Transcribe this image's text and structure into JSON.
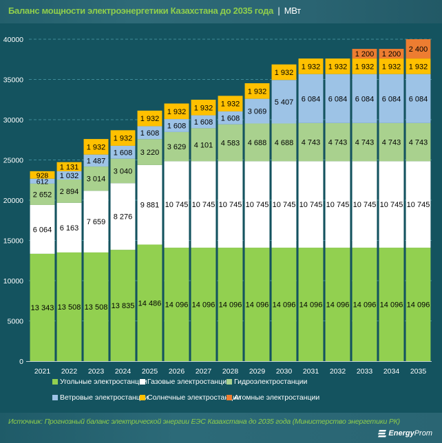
{
  "header": {
    "title": "Баланс мощности электроэнергетики Казахстана до 2035 года",
    "separator": "|",
    "unit": "МВт"
  },
  "footer": {
    "source": "Источник: Прогнозный баланс электрической энергии ЕЭС Казахстана до 2035 года (Министерство энергетики РК)",
    "logo_bold": "Energy",
    "logo_light": "Prom",
    "logo_icon": "energyprom-logo-icon"
  },
  "chart_data": {
    "type": "bar",
    "stacked": true,
    "title": "Баланс мощности электроэнергетики Казахстана до 2035 года",
    "unit": "МВт",
    "xlabel": "",
    "ylabel": "",
    "ylim": [
      0,
      40000
    ],
    "yticks": [
      0,
      5000,
      10000,
      15000,
      20000,
      25000,
      30000,
      35000,
      40000
    ],
    "grid": true,
    "legend_position": "bottom",
    "categories": [
      "2021",
      "2022",
      "2023",
      "2024",
      "2025",
      "2026",
      "2027",
      "2028",
      "2029",
      "2030",
      "2031",
      "2032",
      "2033",
      "2034",
      "2035"
    ],
    "series": [
      {
        "name": "Угольные электростанции",
        "color": "#92d050",
        "values": [
          13343,
          13508,
          13508,
          13835,
          14486,
          14096,
          14096,
          14096,
          14096,
          14096,
          14096,
          14096,
          14096,
          14096,
          14096
        ],
        "labels": [
          "13 343",
          "13 508",
          "13 508",
          "13 835",
          "14 486",
          "14 096",
          "14 096",
          "14 096",
          "14 096",
          "14 096",
          "14 096",
          "14 096",
          "14 096",
          "14 096",
          "14 096"
        ]
      },
      {
        "name": "Газовые электростанции",
        "color": "#ffffff",
        "values": [
          6064,
          6163,
          7659,
          8276,
          9881,
          10745,
          10745,
          10745,
          10745,
          10745,
          10745,
          10745,
          10745,
          10745,
          10745
        ],
        "labels": [
          "6 064",
          "6 163",
          "7 659",
          "8 276",
          "9 881",
          "10 745",
          "10 745",
          "10 745",
          "10 745",
          "10 745",
          "10 745",
          "10 745",
          "10 745",
          "10 745",
          "10 745"
        ]
      },
      {
        "name": "Гидроэлектростанции",
        "color": "#a9d18e",
        "values": [
          2652,
          2894,
          3014,
          3040,
          3220,
          3629,
          4101,
          4583,
          4688,
          4688,
          4743,
          4743,
          4743,
          4743,
          4743
        ],
        "labels": [
          "2 652",
          "2 894",
          "3 014",
          "3 040",
          "3 220",
          "3 629",
          "4 101",
          "4 583",
          "4 688",
          "4 688",
          "4 743",
          "4 743",
          "4 743",
          "4 743",
          "4 743"
        ]
      },
      {
        "name": "Ветровые электростанции",
        "color": "#9dc3e6",
        "values": [
          612,
          1032,
          1487,
          1608,
          1608,
          1608,
          1608,
          1608,
          3069,
          5407,
          6084,
          6084,
          6084,
          6084,
          6084
        ],
        "labels": [
          "612",
          "1 032",
          "1 487",
          "1 608",
          "1 608",
          "1 608",
          "1 608",
          "1 608",
          "3 069",
          "5 407",
          "6 084",
          "6 084",
          "6 084",
          "6 084",
          "6 084"
        ]
      },
      {
        "name": "Солнечные электростанции",
        "color": "#ffc000",
        "values": [
          928,
          1131,
          1932,
          1932,
          1932,
          1932,
          1932,
          1932,
          1932,
          1932,
          1932,
          1932,
          1932,
          1932,
          1932
        ],
        "labels": [
          "928",
          "1 131",
          "1 932",
          "1 932",
          "1 932",
          "1 932",
          "1 932",
          "1 932",
          "1 932",
          "1 932",
          "1 932",
          "1 932",
          "1 932",
          "1 932",
          "1 932"
        ]
      },
      {
        "name": "Атомные электростанции",
        "color": "#ed7d31",
        "values": [
          0,
          0,
          0,
          0,
          0,
          0,
          0,
          0,
          0,
          0,
          0,
          0,
          1200,
          1200,
          2400
        ],
        "labels": [
          "",
          "",
          "",
          "",
          "",
          "",
          "",
          "",
          "",
          "",
          "",
          "",
          "1 200",
          "1 200",
          "2 400"
        ]
      }
    ]
  }
}
